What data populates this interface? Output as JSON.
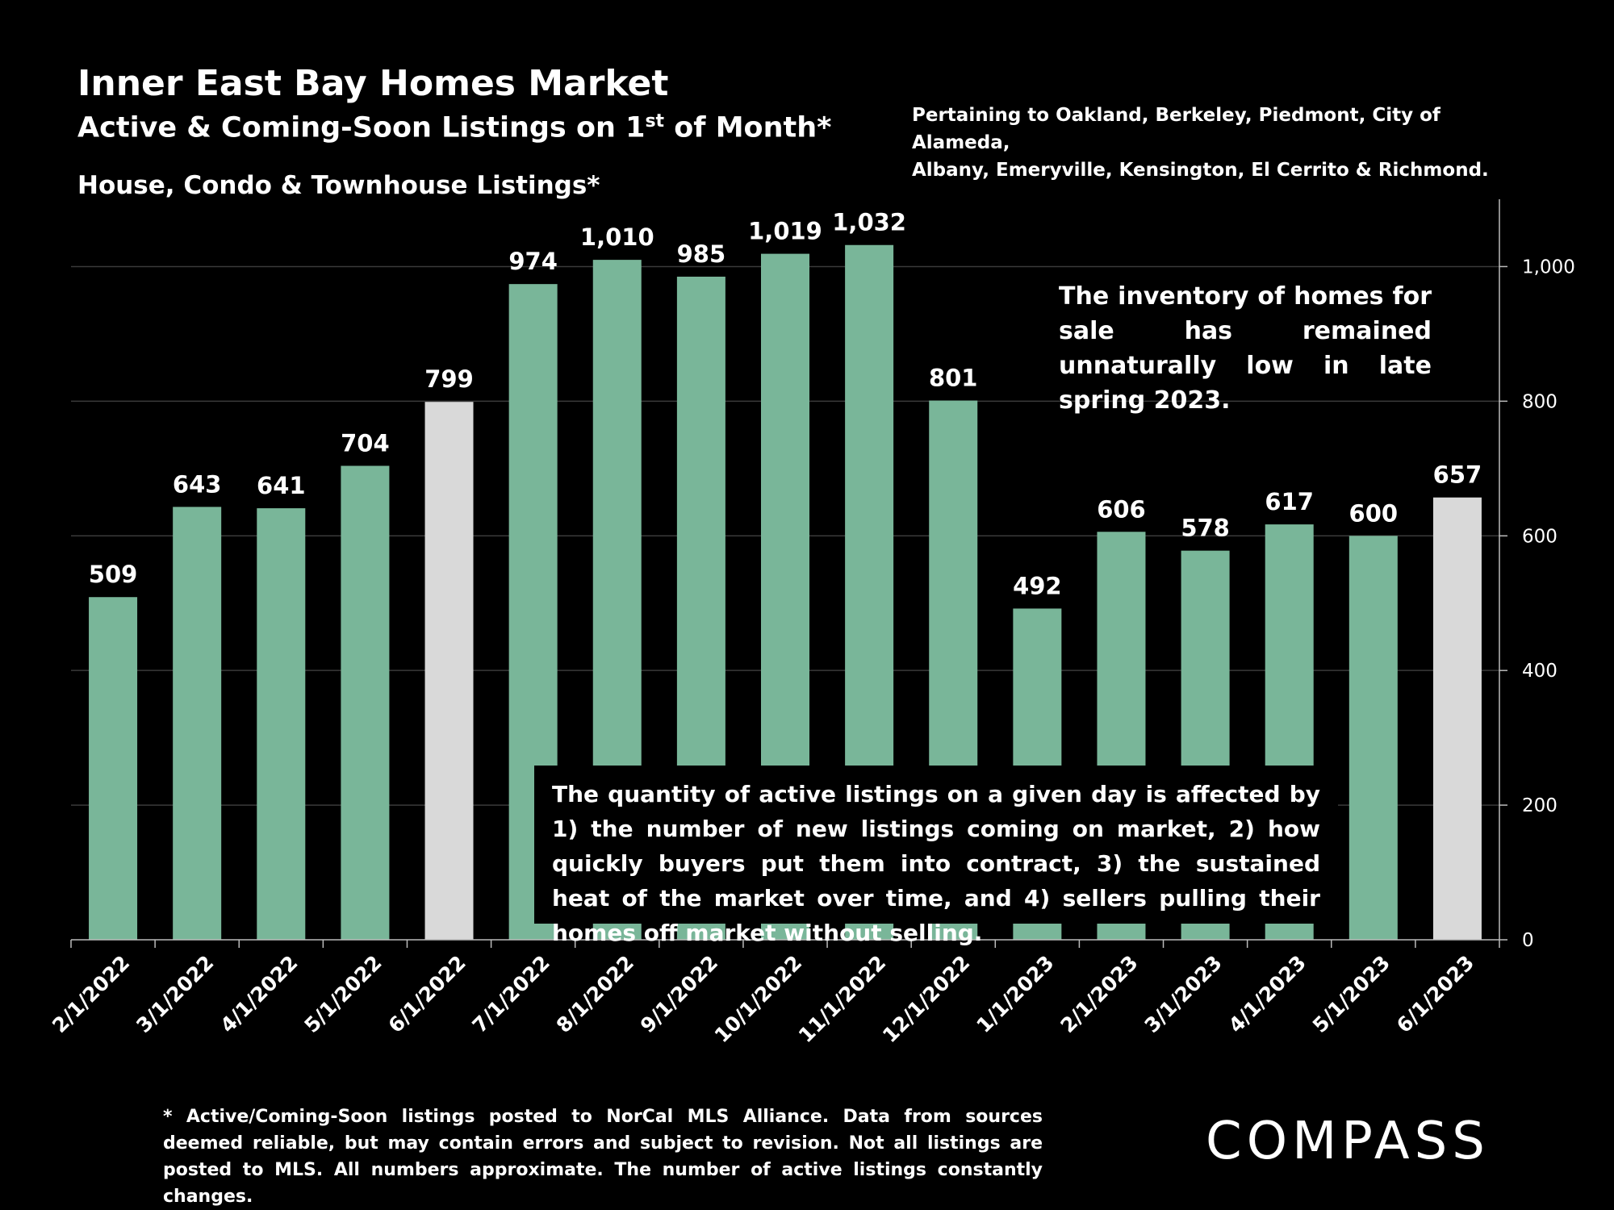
{
  "header": {
    "title": "Inner East Bay Homes Market",
    "subtitle_main": "Active & Coming-Soon Listings on 1",
    "subtitle_sup": "st",
    "subtitle_end": " of Month*",
    "series_title": "House, Condo & Townhouse Listings*",
    "pertaining_line1": "Pertaining to Oakland, Berkeley, Piedmont, City of Alameda,",
    "pertaining_line2": "Albany, Emeryville, Kensington, El Cerrito & Richmond."
  },
  "notes": {
    "top": "The inventory of homes for sale has remained unnaturally low in late spring 2023.",
    "box": "The quantity of active listings on a given day is affected by 1) the number of new listings coming on market, 2) how quickly buyers put them into contract, 3) the sustained heat of the market over time, and 4) sellers pulling their homes off market without selling."
  },
  "footnote": "* Active/Coming-Soon listings posted to NorCal MLS Alliance.  Data from sources deemed reliable, but may contain errors and subject to revision.  Not all listings are posted to MLS. All numbers approximate. The number of active listings constantly changes.",
  "logo": "COMPASS",
  "colors": {
    "bar": "#79b699",
    "highlight": "#d9d9d9",
    "background": "#000000",
    "text": "#ffffff"
  },
  "chart_data": {
    "type": "bar",
    "categories": [
      "2/1/2022",
      "3/1/2022",
      "4/1/2022",
      "5/1/2022",
      "6/1/2022",
      "7/1/2022",
      "8/1/2022",
      "9/1/2022",
      "10/1/2022",
      "11/1/2022",
      "12/1/2022",
      "1/1/2023",
      "2/1/2023",
      "3/1/2023",
      "4/1/2023",
      "5/1/2023",
      "6/1/2023"
    ],
    "values": [
      509,
      643,
      641,
      704,
      799,
      974,
      1010,
      985,
      1019,
      1032,
      801,
      492,
      606,
      578,
      617,
      600,
      657
    ],
    "value_labels": [
      "509",
      "643",
      "641",
      "704",
      "799",
      "974",
      "1,010",
      "985",
      "1,019",
      "1,032",
      "801",
      "492",
      "606",
      "578",
      "617",
      "600",
      "657"
    ],
    "highlighted": [
      "6/1/2022",
      "6/1/2023"
    ],
    "y_axis_side": "right",
    "ylim": [
      0,
      1100
    ],
    "yticks": [
      0,
      200,
      400,
      600,
      800,
      1000
    ],
    "ytick_labels": [
      "0",
      "200",
      "400",
      "600",
      "800",
      "1,000"
    ],
    "grid": true
  }
}
